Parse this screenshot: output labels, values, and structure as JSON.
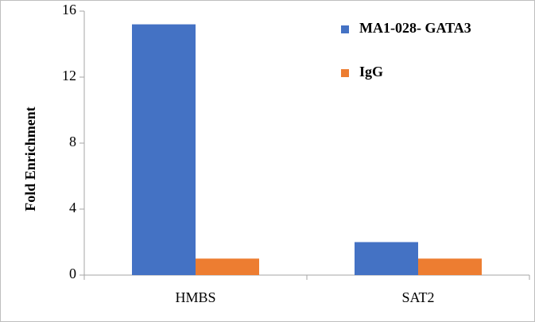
{
  "chart_data": {
    "type": "bar",
    "y_label": "Fold Enrichment",
    "categories": [
      "HMBS",
      "SAT2"
    ],
    "series": [
      {
        "name": "MA1-028- GATA3",
        "color": "#4472c4",
        "values": [
          15.2,
          2.0
        ]
      },
      {
        "name": "IgG",
        "color": "#ed7d31",
        "values": [
          1.0,
          1.0
        ]
      }
    ],
    "ylim": [
      0,
      16
    ],
    "yticks": [
      0,
      4,
      8,
      12,
      16
    ],
    "grid": false,
    "legend": "upper right"
  }
}
